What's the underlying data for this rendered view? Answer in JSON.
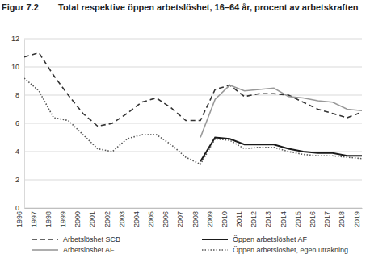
{
  "chart_data": {
    "type": "line",
    "title": "Figur 7.2",
    "subtitle": "Total respektive öppen arbetslöshet, 16–64 år, procent av arbetskraften",
    "x": [
      1996,
      1997,
      1998,
      1999,
      2000,
      2001,
      2002,
      2003,
      2004,
      2005,
      2006,
      2007,
      2008,
      2009,
      2010,
      2011,
      2012,
      2013,
      2014,
      2015,
      2016,
      2017,
      2018,
      2019
    ],
    "xlim": [
      1996,
      2019
    ],
    "xticks": [
      1996,
      1997,
      1998,
      1999,
      2000,
      2001,
      2002,
      2003,
      2004,
      2005,
      2006,
      2007,
      2008,
      2009,
      2010,
      2011,
      2012,
      2013,
      2014,
      2015,
      2016,
      2017,
      2018,
      2019
    ],
    "ylim": [
      0,
      12
    ],
    "yticks": [
      0,
      2,
      4,
      6,
      8,
      10,
      12
    ],
    "grid": true,
    "legend": "bottom",
    "series": [
      {
        "name": "Arbetslöshet SCB",
        "color": "#333333",
        "line_style": "dashed",
        "values": [
          10.7,
          11.0,
          9.4,
          8.0,
          6.7,
          5.8,
          6.0,
          6.7,
          7.5,
          7.8,
          7.1,
          6.2,
          6.2,
          8.4,
          8.7,
          7.9,
          8.1,
          8.1,
          8.0,
          7.5,
          7.0,
          6.7,
          6.4,
          6.8
        ]
      },
      {
        "name": "Öppen arbetslöshet AF",
        "color": "#1a1a1a",
        "line_style": "solid",
        "values": [
          null,
          null,
          null,
          null,
          null,
          null,
          null,
          null,
          null,
          null,
          null,
          null,
          3.3,
          5.0,
          4.9,
          4.5,
          4.5,
          4.5,
          4.2,
          4.0,
          3.9,
          3.9,
          3.7,
          3.7
        ]
      },
      {
        "name": "Arbetslöshet AF",
        "color": "#999999",
        "line_style": "solid",
        "values": [
          null,
          null,
          null,
          null,
          null,
          null,
          null,
          null,
          null,
          null,
          null,
          null,
          5.0,
          7.7,
          8.7,
          8.3,
          8.4,
          8.5,
          7.9,
          7.8,
          7.6,
          7.5,
          7.0,
          6.9
        ]
      },
      {
        "name": "Öppen arbetslöshet, egen uträkning",
        "color": "#555555",
        "line_style": "dotted",
        "values": [
          9.2,
          8.3,
          6.4,
          6.2,
          5.2,
          4.2,
          4.0,
          4.9,
          5.2,
          5.2,
          4.5,
          3.6,
          3.1,
          4.9,
          4.8,
          4.2,
          4.3,
          4.3,
          4.0,
          3.8,
          3.7,
          3.7,
          3.6,
          3.5
        ]
      }
    ]
  }
}
